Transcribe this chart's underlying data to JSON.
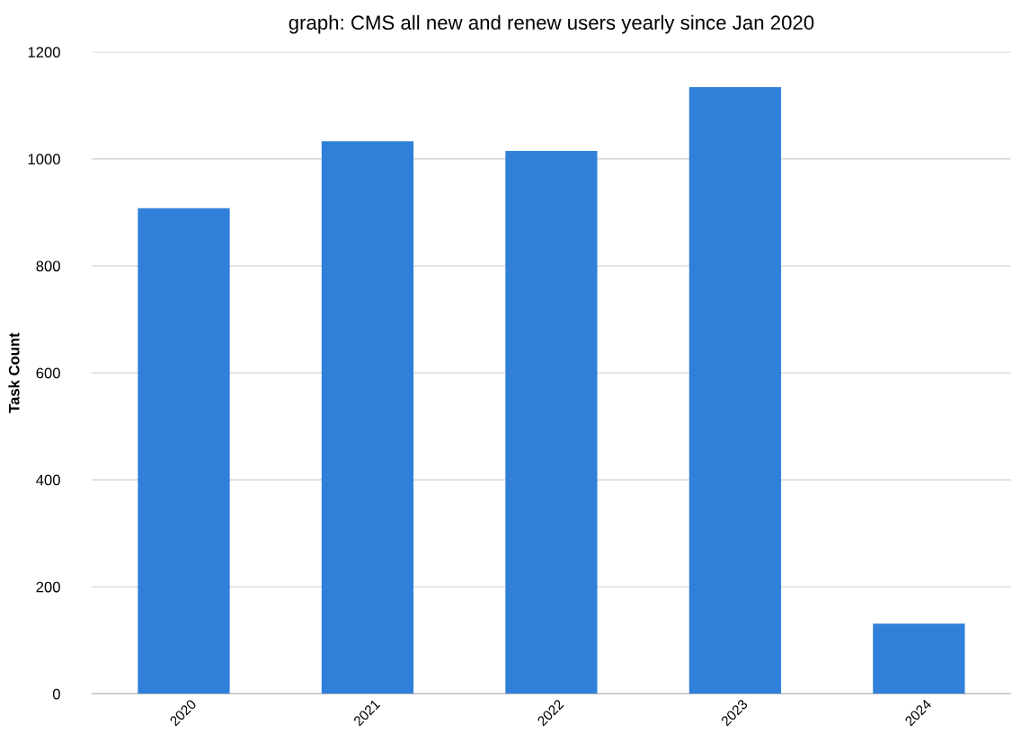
{
  "chart_data": {
    "type": "bar",
    "title": "graph: CMS all new and renew users yearly since Jan 2020",
    "ylabel": "Task Count",
    "categories": [
      "2020",
      "2021",
      "2022",
      "2023",
      "2024"
    ],
    "values": [
      908,
      1033,
      1015,
      1134,
      131
    ],
    "color": "#3080d9",
    "ylim": [
      0,
      1200
    ],
    "yticks": [
      0,
      200,
      400,
      600,
      800,
      1000,
      1200
    ],
    "grid": "y"
  }
}
